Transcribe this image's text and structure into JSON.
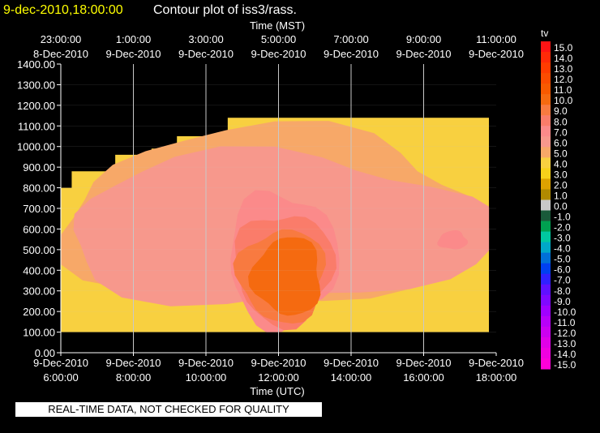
{
  "header": {
    "timestamp": "9-dec-2010,18:00:00",
    "title": "Contour plot of iss3/rass."
  },
  "footer": {
    "quality_note": "REAL-TIME DATA, NOT CHECKED FOR QUALITY"
  },
  "colors": {
    "timestamp": "#ffff00",
    "background": "#000000",
    "grid": "#c8c8c8"
  },
  "chart_data": {
    "type": "heatmap",
    "variable": "tv",
    "top_axis": {
      "label": "Time (MST)",
      "ticks": [
        {
          "time": "23:00:00",
          "date": "8-Dec-2010"
        },
        {
          "time": "1:00:00",
          "date": "9-Dec-2010"
        },
        {
          "time": "3:00:00",
          "date": "9-Dec-2010"
        },
        {
          "time": "5:00:00",
          "date": "9-Dec-2010"
        },
        {
          "time": "7:00:00",
          "date": "9-Dec-2010"
        },
        {
          "time": "9:00:00",
          "date": "9-Dec-2010"
        },
        {
          "time": "11:00:00",
          "date": "9-Dec-2010"
        }
      ]
    },
    "bottom_axis": {
      "label": "Time (UTC)",
      "ticks": [
        {
          "date": "9-Dec-2010",
          "time": "6:00:00"
        },
        {
          "date": "9-Dec-2010",
          "time": "8:00:00"
        },
        {
          "date": "9-Dec-2010",
          "time": "10:00:00"
        },
        {
          "date": "9-Dec-2010",
          "time": "12:00:00"
        },
        {
          "date": "9-Dec-2010",
          "time": "14:00:00"
        },
        {
          "date": "9-Dec-2010",
          "time": "16:00:00"
        },
        {
          "date": "9-Dec-2010",
          "time": "18:00:00"
        }
      ],
      "range_hours": [
        6,
        18
      ]
    },
    "y_axis": {
      "range": [
        0,
        1400
      ],
      "ticks": [
        "0.00",
        "100.00",
        "200.00",
        "300.00",
        "400.00",
        "500.00",
        "600.00",
        "700.00",
        "800.00",
        "900.00",
        "1000.00",
        "1100.00",
        "1200.00",
        "1300.00",
        "1400.00"
      ]
    },
    "grid": true,
    "colorbar": {
      "label": "tv",
      "levels": [
        {
          "value": "15.0",
          "color": "#ff1414"
        },
        {
          "value": "14.0",
          "color": "#ff2a08"
        },
        {
          "value": "13.0",
          "color": "#ff3c00"
        },
        {
          "value": "12.0",
          "color": "#fc4c00"
        },
        {
          "value": "11.0",
          "color": "#f85a00"
        },
        {
          "value": "10.0",
          "color": "#f56a10"
        },
        {
          "value": "9.0",
          "color": "#f87a40"
        },
        {
          "value": "8.0",
          "color": "#fa7c6a"
        },
        {
          "value": "7.0",
          "color": "#fb8a8a"
        },
        {
          "value": "6.0",
          "color": "#f7988c"
        },
        {
          "value": "5.0",
          "color": "#f7a868"
        },
        {
          "value": "4.0",
          "color": "#f8d040"
        },
        {
          "value": "3.0",
          "color": "#f7d11a"
        },
        {
          "value": "2.0",
          "color": "#dda200"
        },
        {
          "value": "1.0",
          "color": "#b08a00"
        },
        {
          "value": "0.0",
          "color": "#c8c8c8"
        },
        {
          "value": "-1.0",
          "color": "#1a5a3a"
        },
        {
          "value": "-2.0",
          "color": "#00a050"
        },
        {
          "value": "-3.0",
          "color": "#00c8a0"
        },
        {
          "value": "-4.0",
          "color": "#00a8c8"
        },
        {
          "value": "-5.0",
          "color": "#0070d8"
        },
        {
          "value": "-6.0",
          "color": "#0040f0"
        },
        {
          "value": "-7.0",
          "color": "#3020ff"
        },
        {
          "value": "-8.0",
          "color": "#6010ff"
        },
        {
          "value": "-9.0",
          "color": "#8008ff"
        },
        {
          "value": "-10.0",
          "color": "#a000ff"
        },
        {
          "value": "-11.0",
          "color": "#b800f8"
        },
        {
          "value": "-12.0",
          "color": "#cc00f0"
        },
        {
          "value": "-13.0",
          "color": "#e000e8"
        },
        {
          "value": "-14.0",
          "color": "#f000e0"
        },
        {
          "value": "-15.0",
          "color": "#ff00d8"
        }
      ]
    },
    "data_extent": {
      "x_hours": [
        6.0,
        17.8
      ],
      "y_range": [
        100,
        1140
      ],
      "data_top_profile": [
        {
          "x_hours": 6.0,
          "top": 800
        },
        {
          "x_hours": 6.3,
          "top": 880
        },
        {
          "x_hours": 7.5,
          "top": 960
        },
        {
          "x_hours": 8.5,
          "top": 990
        },
        {
          "x_hours": 9.2,
          "top": 1050
        },
        {
          "x_hours": 10.6,
          "top": 1140
        }
      ]
    },
    "contour_regions": [
      {
        "level": "4.0",
        "x_hours": [
          6.0,
          17.8
        ],
        "y": [
          100,
          1140
        ]
      },
      {
        "level": "5.0",
        "x_hours": [
          6.0,
          17.8
        ],
        "y": [
          230,
          1080
        ]
      },
      {
        "level": "6.0",
        "x_hours": [
          6.0,
          17.8
        ],
        "y": [
          230,
          960
        ]
      },
      {
        "level": "7.0",
        "x_hours": [
          10.6,
          13.6
        ],
        "y": [
          130,
          780
        ]
      },
      {
        "level": "8.0",
        "x_hours": [
          10.8,
          13.5
        ],
        "y": [
          140,
          680
        ]
      },
      {
        "level": "9.0",
        "x_hours": [
          10.9,
          13.3
        ],
        "y": [
          150,
          600
        ]
      },
      {
        "level": "10.0",
        "x_hours": [
          11.3,
          13.2
        ],
        "y": [
          180,
          560
        ]
      },
      {
        "level": "7.0",
        "x_hours": [
          16.4,
          17.2
        ],
        "y": [
          500,
          590
        ]
      }
    ]
  }
}
